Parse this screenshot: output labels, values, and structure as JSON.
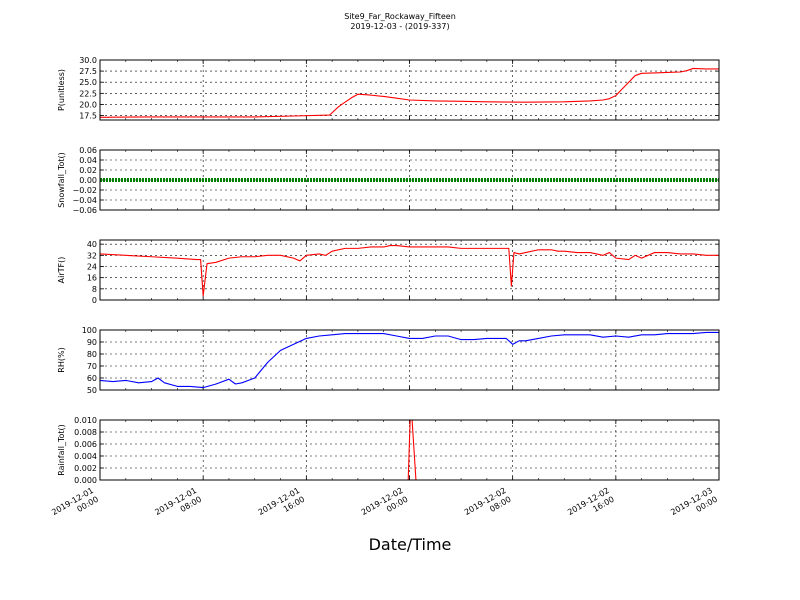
{
  "title": "Site9_Far_Rockaway_Fifteen",
  "subtitle": "2019-12-03 - (2019-337)",
  "xlabel": "Date/Time",
  "x_ticks": [
    {
      "x": 0,
      "line1": "2019-12-01",
      "line2": "00:00"
    },
    {
      "x": 8,
      "line1": "2019-12-01",
      "line2": "08:00"
    },
    {
      "x": 16,
      "line1": "2019-12-01",
      "line2": "16:00"
    },
    {
      "x": 24,
      "line1": "2019-12-02",
      "line2": "00:00"
    },
    {
      "x": 32,
      "line1": "2019-12-02",
      "line2": "08:00"
    },
    {
      "x": 40,
      "line1": "2019-12-02",
      "line2": "16:00"
    },
    {
      "x": 48,
      "line1": "2019-12-03",
      "line2": "00:00"
    }
  ],
  "chart_data": [
    {
      "type": "line",
      "ylabel": "P(unitless)",
      "ylim": [
        16.5,
        30.0
      ],
      "yticks": [
        "17.5",
        "20.0",
        "22.5",
        "25.0",
        "27.5",
        "30.0"
      ],
      "color": "#ff0000",
      "grid": true,
      "series": [
        {
          "x": [
            0,
            4,
            8,
            12,
            15,
            17.8,
            18.5,
            19,
            19.2,
            19.5,
            20,
            21,
            22,
            23,
            24,
            26,
            28,
            30,
            33,
            36,
            38,
            39,
            39.5,
            40,
            40.5,
            41,
            41.5,
            42,
            43,
            44,
            45,
            45.5,
            46,
            47,
            48
          ],
          "y": [
            17.1,
            17.2,
            17.2,
            17.2,
            17.4,
            17.6,
            19.5,
            20.5,
            20.9,
            21.5,
            22.3,
            22.1,
            21.8,
            21.4,
            21.0,
            20.8,
            20.7,
            20.6,
            20.5,
            20.6,
            20.8,
            21.0,
            21.3,
            22.0,
            23.5,
            25.0,
            26.5,
            27.0,
            27.1,
            27.2,
            27.3,
            27.6,
            28.1,
            28.0,
            28.0
          ]
        }
      ]
    },
    {
      "type": "line",
      "ylabel": "Snowfall_Tot()",
      "ylim": [
        -0.06,
        0.06
      ],
      "yticks": [
        "−0.06",
        "−0.04",
        "−0.02",
        "0.00",
        "0.02",
        "0.04",
        "0.06"
      ],
      "color": "#008000",
      "grid": true,
      "series": [
        {
          "x": [
            0,
            48
          ],
          "y": [
            0,
            0
          ]
        }
      ]
    },
    {
      "type": "line",
      "ylabel": "AirTF()",
      "ylim": [
        0,
        43
      ],
      "yticks": [
        "0",
        "8",
        "16",
        "24",
        "32",
        "40"
      ],
      "color": "#ff0000",
      "grid": true,
      "series": [
        {
          "x": [
            0,
            2,
            4,
            6,
            7.5,
            7.8,
            8.0,
            8.3,
            9,
            10,
            11,
            12,
            13,
            14,
            15,
            15.5,
            16,
            17,
            17.5,
            18,
            19,
            20,
            21,
            22,
            22.5,
            23,
            24,
            25,
            26,
            27,
            28,
            29,
            30,
            31,
            31.7,
            31.9,
            32.1,
            32.5,
            33,
            34,
            35,
            35.5,
            36,
            37,
            38,
            39,
            39.5,
            40,
            41,
            41.5,
            42,
            43,
            44,
            45,
            46,
            47,
            48
          ],
          "y": [
            33,
            32,
            31,
            30,
            29,
            29,
            3,
            26,
            27,
            30,
            31,
            31,
            32,
            32,
            30,
            28,
            32,
            33,
            32,
            35,
            37,
            37,
            38,
            38,
            39,
            39,
            38,
            38,
            38,
            38,
            37,
            37,
            37,
            37,
            37,
            10,
            34,
            33,
            34,
            36,
            36,
            35,
            35,
            34,
            34,
            32,
            34,
            30,
            29,
            32,
            30,
            34,
            34,
            33,
            33,
            32,
            32
          ]
        }
      ]
    },
    {
      "type": "line",
      "ylabel": "RH(%)",
      "ylim": [
        50,
        100
      ],
      "yticks": [
        "50",
        "60",
        "70",
        "80",
        "90",
        "100"
      ],
      "color": "#0000ff",
      "grid": true,
      "series": [
        {
          "x": [
            0,
            1,
            2,
            3,
            4,
            4.5,
            5,
            6,
            7,
            8,
            9,
            10,
            10.5,
            11,
            12,
            13,
            14,
            15,
            16,
            17,
            18,
            19,
            20,
            21,
            22,
            23,
            24,
            25,
            26,
            27,
            28,
            29,
            30,
            31,
            31.5,
            32,
            32.5,
            33,
            34,
            35,
            36,
            37,
            38,
            39,
            40,
            41,
            42,
            43,
            44,
            45,
            46,
            47,
            48
          ],
          "y": [
            58,
            57,
            58,
            56,
            57,
            60,
            56,
            53,
            53,
            52,
            55,
            59,
            55,
            56,
            60,
            73,
            83,
            88,
            93,
            95,
            96,
            97,
            97,
            97,
            97,
            95,
            93,
            93,
            95,
            95,
            92,
            92,
            93,
            93,
            93,
            88,
            91,
            91,
            93,
            95,
            96,
            96,
            96,
            94,
            95,
            94,
            96,
            96,
            97,
            97,
            97,
            98,
            98
          ]
        }
      ]
    },
    {
      "type": "line",
      "ylabel": "Rainfall_Tot()",
      "ylim": [
        0,
        0.01
      ],
      "yticks": [
        "0.000",
        "0.002",
        "0.004",
        "0.006",
        "0.008",
        "0.010"
      ],
      "color": "#ff0000",
      "grid": true,
      "series": [
        {
          "x": [
            0,
            23.9,
            24.05,
            24.2,
            24.5,
            48
          ],
          "y": [
            0,
            0,
            0.01,
            0.01,
            0,
            0
          ]
        }
      ]
    }
  ]
}
